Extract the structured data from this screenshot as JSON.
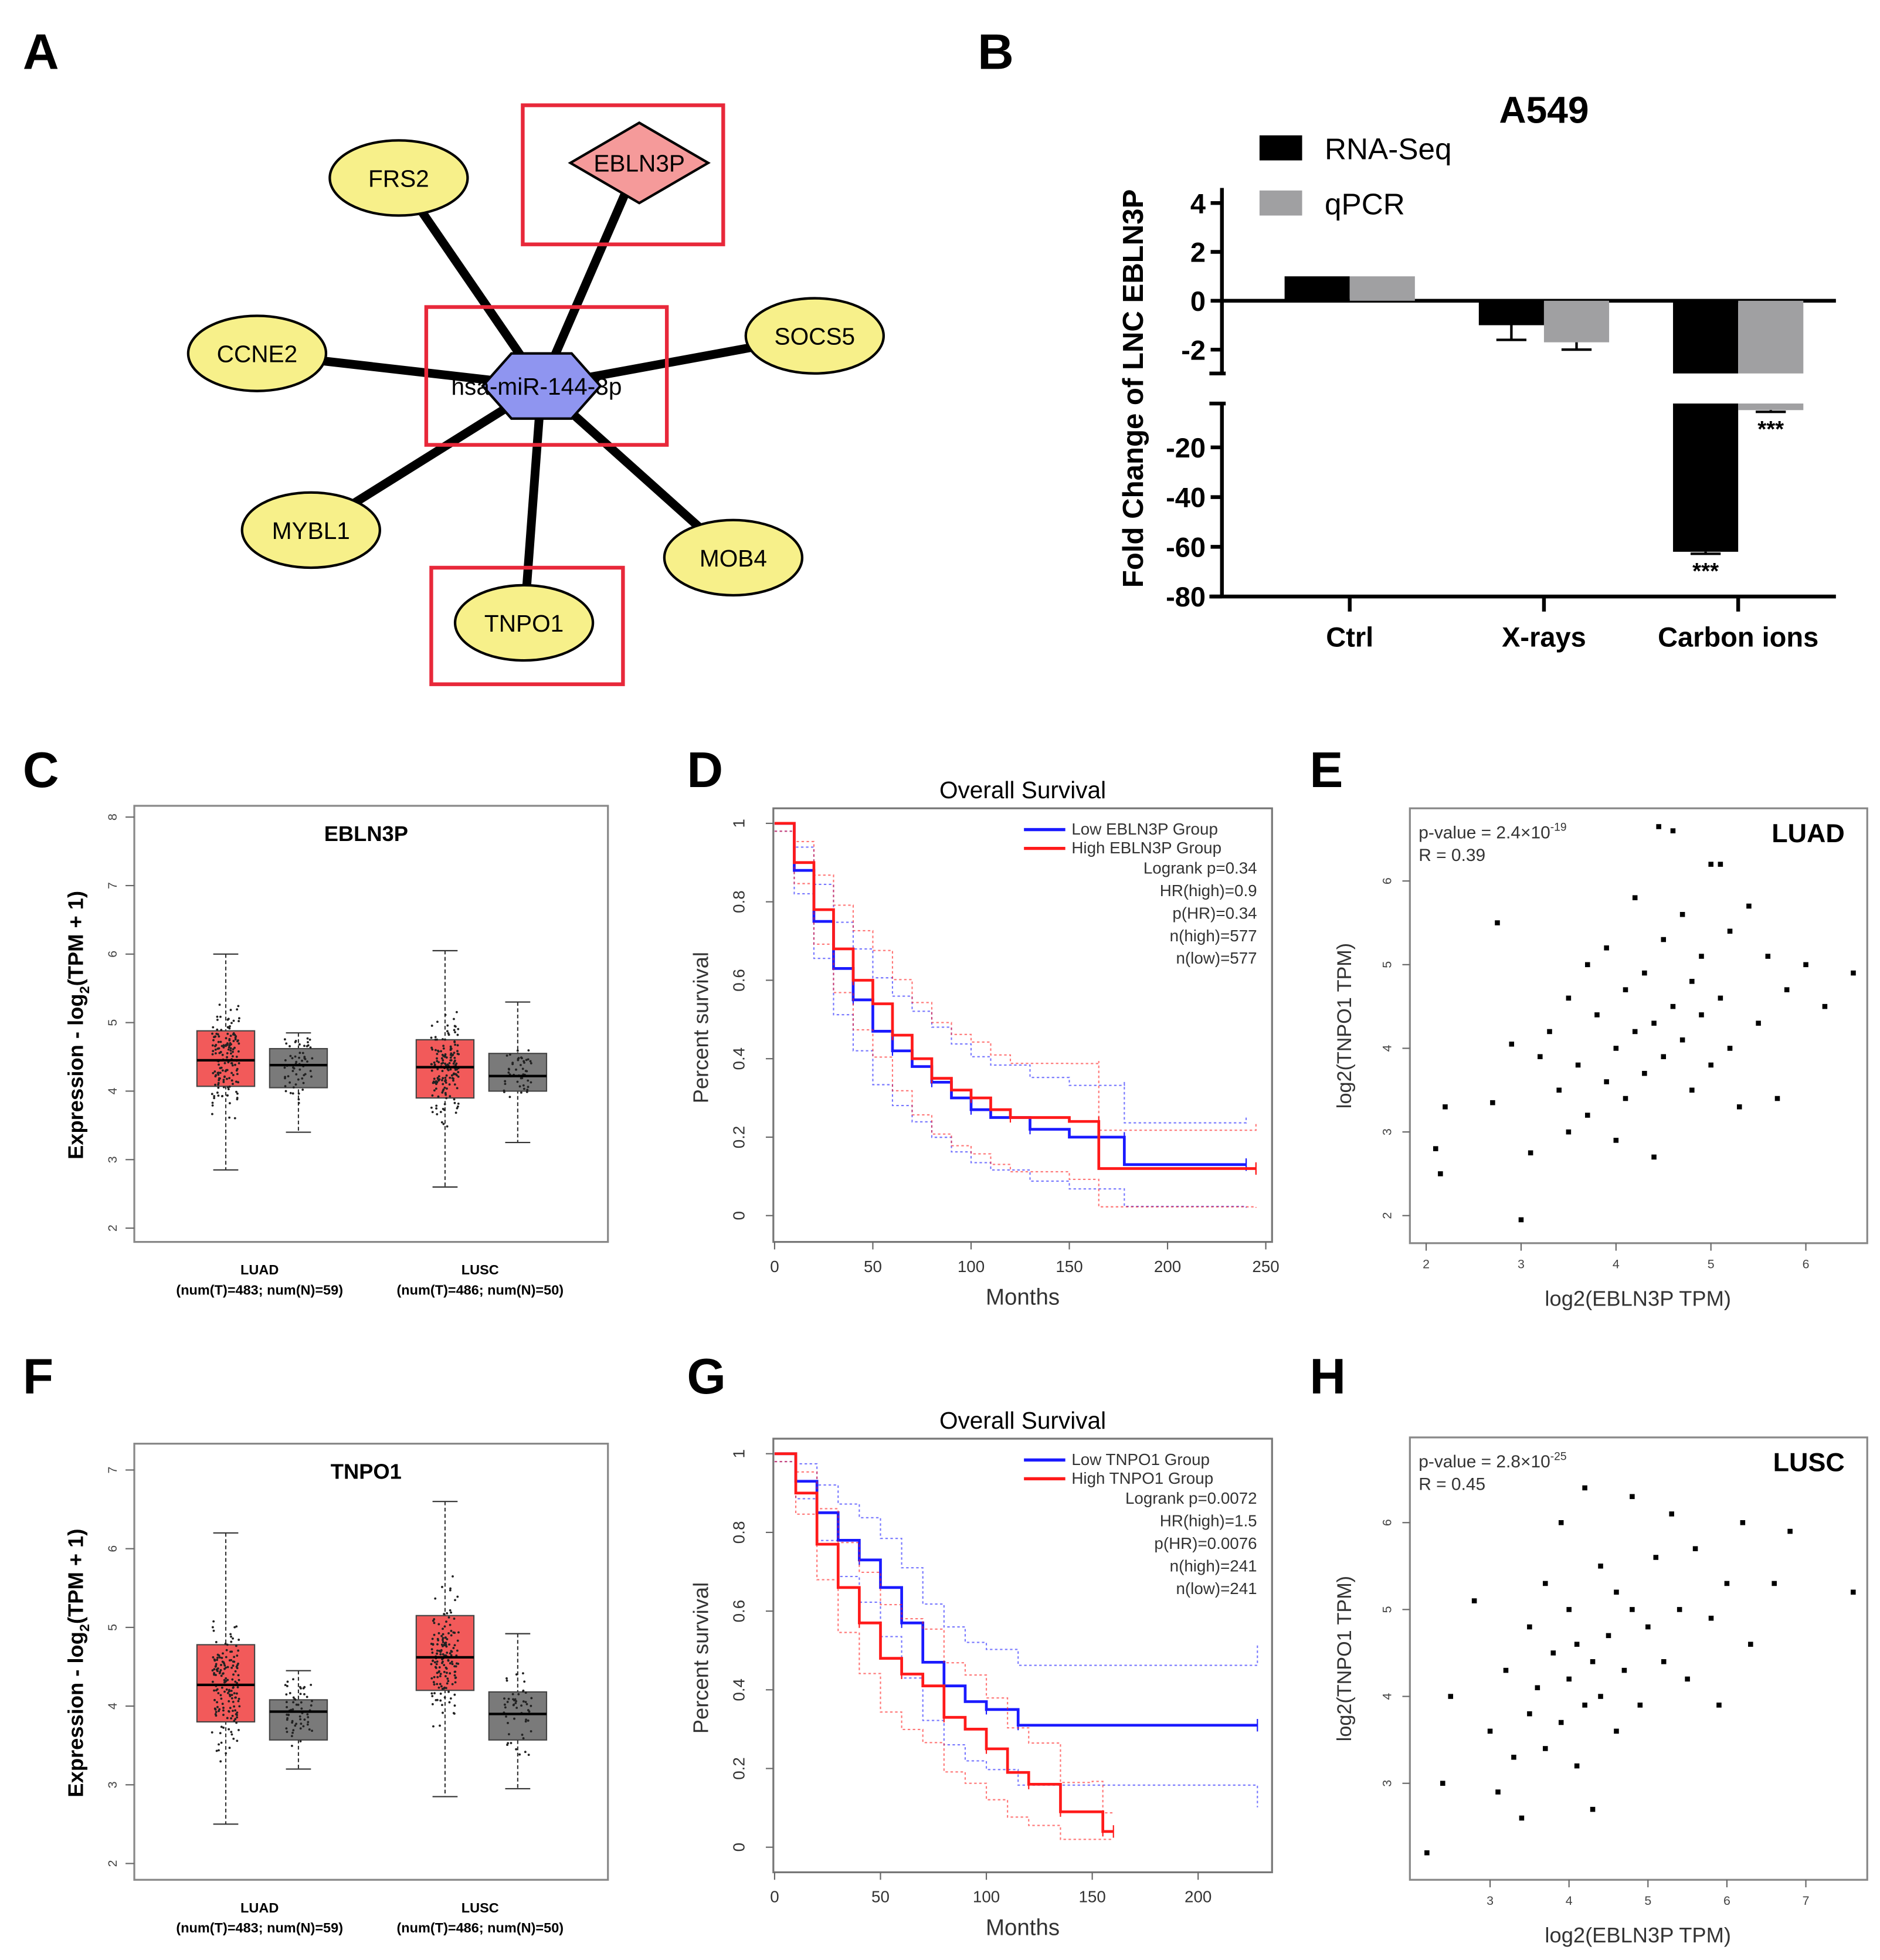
{
  "panels": {
    "a": "A",
    "b": "B",
    "c": "C",
    "d": "D",
    "e": "E",
    "f": "F",
    "g": "G",
    "h": "H"
  },
  "network": {
    "hub": "hsa-miR-144-3p",
    "nodes": [
      "FRS2",
      "EBLN3P",
      "CCNE2",
      "SOCS5",
      "MYBL1",
      "MOB4",
      "TNPO1"
    ],
    "colors": {
      "gene": "#f7f08a",
      "lnc": "#f59a9a",
      "mirna": "#8f95f0",
      "highlight": "#e8283a"
    }
  },
  "chart_data": [
    {
      "id": "B",
      "type": "bar",
      "title": "A549",
      "ylabel": "Fold Change of LNC EBLN3P",
      "xlabel": "",
      "categories": [
        "Ctrl",
        "X-rays",
        "Carbon ions"
      ],
      "series": [
        {
          "name": "RNA-Seq",
          "color": "#000000",
          "values": [
            1,
            -1,
            -62
          ],
          "error": [
            0,
            0.6,
            0.8
          ]
        },
        {
          "name": "qPCR",
          "color": "#a0a0a2",
          "values": [
            1,
            -1.7,
            -5
          ],
          "error": [
            0,
            0.3,
            0.7
          ]
        }
      ],
      "significance": [
        "",
        "",
        "***"
      ],
      "yticks_upper": [
        4,
        2,
        0,
        -2
      ],
      "yticks_lower": [
        -20,
        -40,
        -60,
        -80
      ],
      "axis_break": [
        -3,
        -8
      ],
      "ylim": [
        -80,
        5
      ]
    },
    {
      "id": "C",
      "type": "box",
      "title": "EBLN3P",
      "ylabel_parts": [
        "Expression - log",
        "2",
        "(TPM + 1)"
      ],
      "groups": [
        {
          "name": "LUAD",
          "sub": "(num(T)=483; num(N)=59)"
        },
        {
          "name": "LUSC",
          "sub": "(num(T)=486; num(N)=50)"
        }
      ],
      "boxes": [
        {
          "group": "LUAD",
          "type": "T",
          "n": 483,
          "min": 2.85,
          "q1": 4.07,
          "median": 4.45,
          "q3": 4.88,
          "max": 6.0,
          "color": "#f25a5a"
        },
        {
          "group": "LUAD",
          "type": "N",
          "n": 59,
          "min": 3.4,
          "q1": 4.05,
          "median": 4.38,
          "q3": 4.62,
          "max": 4.85,
          "color": "#7a7a7a"
        },
        {
          "group": "LUSC",
          "type": "T",
          "n": 486,
          "min": 2.6,
          "q1": 3.9,
          "median": 4.35,
          "q3": 4.75,
          "max": 6.05,
          "color": "#f25a5a"
        },
        {
          "group": "LUSC",
          "type": "N",
          "n": 50,
          "min": 3.25,
          "q1": 4.0,
          "median": 4.22,
          "q3": 4.55,
          "max": 5.3,
          "color": "#7a7a7a"
        }
      ],
      "yticks": [
        2,
        3,
        4,
        5,
        6,
        7,
        8
      ],
      "ylim": [
        2,
        8
      ]
    },
    {
      "id": "D",
      "type": "line",
      "title": "Overall Survival",
      "xlabel": "Months",
      "ylabel": "Percent survival",
      "xticks": [
        0,
        50,
        100,
        150,
        200,
        250
      ],
      "yticks": [
        0.0,
        0.2,
        0.4,
        0.6,
        0.8,
        1.0
      ],
      "xlim": [
        0,
        250
      ],
      "ylim": [
        0,
        1
      ],
      "legend": [
        "Low EBLN3P Group",
        "High EBLN3P Group"
      ],
      "stats": [
        "Logrank p=0.34",
        "HR(high)=0.9",
        "p(HR)=0.34",
        "n(high)=577",
        "n(low)=577"
      ],
      "series": [
        {
          "name": "Low EBLN3P Group",
          "color": "#1a1aff",
          "points": [
            [
              0,
              1
            ],
            [
              10,
              0.88
            ],
            [
              20,
              0.75
            ],
            [
              30,
              0.63
            ],
            [
              40,
              0.55
            ],
            [
              50,
              0.47
            ],
            [
              60,
              0.42
            ],
            [
              70,
              0.38
            ],
            [
              80,
              0.34
            ],
            [
              90,
              0.3
            ],
            [
              100,
              0.27
            ],
            [
              110,
              0.25
            ],
            [
              130,
              0.22
            ],
            [
              150,
              0.2
            ],
            [
              178,
              0.2
            ],
            [
              178,
              0.13
            ],
            [
              240,
              0.13
            ]
          ]
        },
        {
          "name": "High EBLN3P Group",
          "color": "#ff1a1a",
          "points": [
            [
              0,
              1
            ],
            [
              10,
              0.9
            ],
            [
              20,
              0.78
            ],
            [
              30,
              0.68
            ],
            [
              40,
              0.6
            ],
            [
              50,
              0.54
            ],
            [
              60,
              0.46
            ],
            [
              70,
              0.4
            ],
            [
              80,
              0.35
            ],
            [
              90,
              0.32
            ],
            [
              100,
              0.3
            ],
            [
              110,
              0.27
            ],
            [
              120,
              0.25
            ],
            [
              150,
              0.24
            ],
            [
              165,
              0.24
            ],
            [
              165,
              0.12
            ],
            [
              245,
              0.12
            ]
          ]
        }
      ]
    },
    {
      "id": "E",
      "type": "scatter",
      "label": "LUAD",
      "pvalue_base": "p-value = 2.4×10",
      "pvalue_exp": "-19",
      "r": "R = 0.39",
      "xlabel": "log2(EBLN3P TPM)",
      "ylabel": "log2(TNPO1 TPM)",
      "xticks": [
        2,
        3,
        4,
        5,
        6
      ],
      "yticks": [
        2,
        3,
        4,
        5,
        6
      ],
      "xlim": [
        1.85,
        6.6
      ],
      "ylim": [
        1.7,
        6.9
      ],
      "points": [
        [
          2.1,
          2.8
        ],
        [
          2.15,
          2.5
        ],
        [
          2.2,
          3.3
        ],
        [
          2.7,
          3.35
        ],
        [
          2.75,
          5.5
        ],
        [
          2.9,
          4.05
        ],
        [
          3.0,
          1.95
        ],
        [
          3.1,
          2.75
        ],
        [
          3.2,
          3.9
        ],
        [
          3.3,
          4.2
        ],
        [
          3.4,
          3.5
        ],
        [
          3.5,
          3.0
        ],
        [
          3.5,
          4.6
        ],
        [
          3.6,
          3.8
        ],
        [
          3.7,
          5.0
        ],
        [
          3.7,
          3.2
        ],
        [
          3.8,
          4.4
        ],
        [
          3.9,
          5.2
        ],
        [
          3.9,
          3.6
        ],
        [
          4.0,
          4.0
        ],
        [
          4.0,
          2.9
        ],
        [
          4.1,
          4.7
        ],
        [
          4.1,
          3.4
        ],
        [
          4.2,
          4.2
        ],
        [
          4.2,
          5.8
        ],
        [
          4.3,
          3.7
        ],
        [
          4.3,
          4.9
        ],
        [
          4.4,
          4.3
        ],
        [
          4.4,
          2.7
        ],
        [
          4.5,
          5.3
        ],
        [
          4.5,
          3.9
        ],
        [
          4.6,
          4.5
        ],
        [
          4.6,
          6.6
        ],
        [
          4.7,
          4.1
        ],
        [
          4.7,
          5.6
        ],
        [
          4.8,
          3.5
        ],
        [
          4.8,
          4.8
        ],
        [
          4.9,
          4.4
        ],
        [
          4.9,
          5.1
        ],
        [
          5.0,
          6.2
        ],
        [
          5.0,
          3.8
        ],
        [
          5.1,
          4.6
        ],
        [
          5.2,
          5.4
        ],
        [
          5.2,
          4.0
        ],
        [
          5.3,
          3.3
        ],
        [
          5.4,
          5.7
        ],
        [
          5.5,
          4.3
        ],
        [
          5.6,
          5.1
        ],
        [
          5.7,
          3.4
        ],
        [
          5.8,
          4.7
        ],
        [
          6.0,
          5.0
        ],
        [
          6.2,
          4.5
        ],
        [
          6.5,
          4.9
        ],
        [
          4.45,
          6.65
        ],
        [
          5.1,
          6.2
        ]
      ]
    },
    {
      "id": "F",
      "type": "box",
      "title": "TNPO1",
      "ylabel_parts": [
        "Expression - log",
        "2",
        "(TPM + 1)"
      ],
      "groups": [
        {
          "name": "LUAD",
          "sub": "(num(T)=483; num(N)=59)"
        },
        {
          "name": "LUSC",
          "sub": "(num(T)=486; num(N)=50)"
        }
      ],
      "boxes": [
        {
          "group": "LUAD",
          "type": "T",
          "n": 483,
          "min": 2.5,
          "q1": 3.8,
          "median": 4.27,
          "q3": 4.78,
          "max": 6.2,
          "color": "#f25a5a"
        },
        {
          "group": "LUAD",
          "type": "N",
          "n": 59,
          "min": 3.2,
          "q1": 3.57,
          "median": 3.93,
          "q3": 4.08,
          "max": 4.45,
          "color": "#7a7a7a"
        },
        {
          "group": "LUSC",
          "type": "T",
          "n": 486,
          "min": 2.85,
          "q1": 4.2,
          "median": 4.62,
          "q3": 5.15,
          "max": 6.6,
          "color": "#f25a5a"
        },
        {
          "group": "LUSC",
          "type": "N",
          "n": 50,
          "min": 2.95,
          "q1": 3.57,
          "median": 3.9,
          "q3": 4.18,
          "max": 4.92,
          "color": "#7a7a7a"
        }
      ],
      "yticks": [
        2,
        3,
        4,
        5,
        6,
        7
      ],
      "ylim": [
        2,
        7
      ]
    },
    {
      "id": "G",
      "type": "line",
      "title": "Overall Survival",
      "xlabel": "Months",
      "ylabel": "Percent survival",
      "xticks": [
        0,
        50,
        100,
        150,
        200
      ],
      "yticks": [
        0.0,
        0.2,
        0.4,
        0.6,
        0.8,
        1.0
      ],
      "xlim": [
        0,
        230
      ],
      "ylim": [
        0,
        1
      ],
      "legend": [
        "Low TNPO1 Group",
        "High TNPO1 Group"
      ],
      "stats": [
        "Logrank p=0.0072",
        "HR(high)=1.5",
        "p(HR)=0.0076",
        "n(high)=241",
        "n(low)=241"
      ],
      "series": [
        {
          "name": "Low TNPO1 Group",
          "color": "#1a1aff",
          "points": [
            [
              0,
              1
            ],
            [
              10,
              0.93
            ],
            [
              20,
              0.85
            ],
            [
              30,
              0.78
            ],
            [
              40,
              0.73
            ],
            [
              50,
              0.66
            ],
            [
              60,
              0.57
            ],
            [
              70,
              0.47
            ],
            [
              80,
              0.41
            ],
            [
              90,
              0.37
            ],
            [
              100,
              0.35
            ],
            [
              115,
              0.33
            ],
            [
              115,
              0.31
            ],
            [
              228,
              0.31
            ]
          ]
        },
        {
          "name": "High TNPO1 Group",
          "color": "#ff1a1a",
          "points": [
            [
              0,
              1
            ],
            [
              10,
              0.9
            ],
            [
              20,
              0.77
            ],
            [
              30,
              0.66
            ],
            [
              40,
              0.57
            ],
            [
              50,
              0.48
            ],
            [
              60,
              0.44
            ],
            [
              70,
              0.41
            ],
            [
              80,
              0.33
            ],
            [
              90,
              0.3
            ],
            [
              100,
              0.25
            ],
            [
              110,
              0.19
            ],
            [
              120,
              0.16
            ],
            [
              135,
              0.14
            ],
            [
              135,
              0.09
            ],
            [
              150,
              0.09
            ],
            [
              155,
              0.04
            ],
            [
              160,
              0.04
            ]
          ]
        }
      ]
    },
    {
      "id": "H",
      "type": "scatter",
      "label": "LUSC",
      "pvalue_base": "p-value = 2.8×10",
      "pvalue_exp": "-25",
      "r": "R = 0.45",
      "xlabel": "log2(EBLN3P TPM)",
      "ylabel": "log2(TNPO1 TPM)",
      "xticks": [
        3,
        4,
        5,
        6,
        7
      ],
      "yticks": [
        3,
        4,
        5,
        6
      ],
      "xlim": [
        2.1,
        7.8
      ],
      "ylim": [
        2.0,
        6.8
      ],
      "points": [
        [
          2.2,
          2.2
        ],
        [
          2.4,
          3.0
        ],
        [
          2.5,
          4.0
        ],
        [
          2.8,
          5.1
        ],
        [
          3.0,
          3.6
        ],
        [
          3.1,
          2.9
        ],
        [
          3.2,
          4.3
        ],
        [
          3.3,
          3.3
        ],
        [
          3.4,
          2.6
        ],
        [
          3.5,
          4.8
        ],
        [
          3.5,
          3.8
        ],
        [
          3.6,
          4.1
        ],
        [
          3.7,
          3.4
        ],
        [
          3.7,
          5.3
        ],
        [
          3.8,
          4.5
        ],
        [
          3.9,
          3.7
        ],
        [
          3.9,
          6.0
        ],
        [
          4.0,
          4.2
        ],
        [
          4.0,
          5.0
        ],
        [
          4.1,
          3.2
        ],
        [
          4.1,
          4.6
        ],
        [
          4.2,
          3.9
        ],
        [
          4.2,
          6.4
        ],
        [
          4.3,
          4.4
        ],
        [
          4.3,
          2.7
        ],
        [
          4.4,
          5.5
        ],
        [
          4.4,
          4.0
        ],
        [
          4.5,
          4.7
        ],
        [
          4.6,
          3.6
        ],
        [
          4.6,
          5.2
        ],
        [
          4.7,
          4.3
        ],
        [
          4.8,
          6.3
        ],
        [
          4.8,
          5.0
        ],
        [
          4.9,
          3.9
        ],
        [
          5.0,
          4.8
        ],
        [
          5.1,
          5.6
        ],
        [
          5.2,
          4.4
        ],
        [
          5.3,
          6.1
        ],
        [
          5.4,
          5.0
        ],
        [
          5.5,
          4.2
        ],
        [
          5.6,
          5.7
        ],
        [
          5.8,
          4.9
        ],
        [
          6.0,
          5.3
        ],
        [
          6.2,
          6.0
        ],
        [
          6.3,
          4.6
        ],
        [
          6.6,
          5.3
        ],
        [
          7.6,
          5.2
        ],
        [
          5.9,
          3.9
        ],
        [
          6.8,
          5.9
        ]
      ]
    }
  ]
}
